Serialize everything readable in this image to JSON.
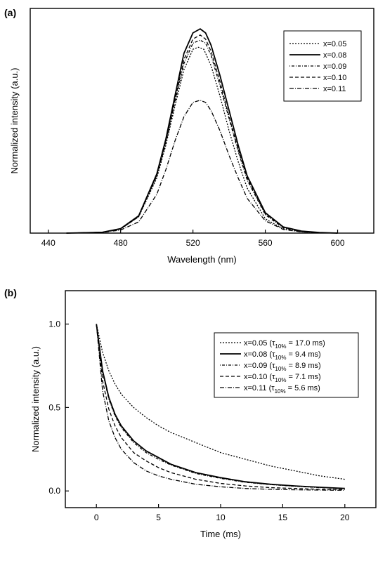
{
  "chart_data": [
    {
      "panel_label": "(a)",
      "type": "line",
      "xlabel": "Wavelength (nm)",
      "ylabel": "Normalized intensity (a.u.)",
      "xlim": [
        430,
        620
      ],
      "ylim": [
        0,
        1.1
      ],
      "xticks": [
        440,
        480,
        520,
        560,
        600
      ],
      "yticks": [],
      "legend_position": "top-right",
      "grid": false,
      "series": [
        {
          "name": "x=0.05",
          "dash": "2,2",
          "x": [
            450,
            470,
            480,
            490,
            500,
            505,
            510,
            515,
            520,
            523,
            526,
            530,
            535,
            540,
            545,
            550,
            560,
            570,
            580,
            590,
            600
          ],
          "y": [
            0,
            0.004,
            0.02,
            0.08,
            0.27,
            0.43,
            0.62,
            0.8,
            0.9,
            0.91,
            0.9,
            0.82,
            0.67,
            0.5,
            0.35,
            0.22,
            0.07,
            0.02,
            0.007,
            0.002,
            0
          ]
        },
        {
          "name": "x=0.08",
          "dash": "",
          "x": [
            450,
            470,
            480,
            490,
            500,
            505,
            510,
            515,
            520,
            524,
            527,
            530,
            535,
            540,
            545,
            550,
            560,
            570,
            580,
            590,
            600
          ],
          "y": [
            0,
            0.004,
            0.022,
            0.085,
            0.29,
            0.46,
            0.67,
            0.88,
            0.98,
            1.0,
            0.98,
            0.92,
            0.77,
            0.6,
            0.43,
            0.28,
            0.1,
            0.03,
            0.01,
            0.003,
            0
          ]
        },
        {
          "name": "x=0.09",
          "dash": "1,2,4,2",
          "x": [
            450,
            470,
            480,
            490,
            500,
            505,
            510,
            515,
            520,
            524,
            527,
            530,
            535,
            540,
            545,
            550,
            560,
            570,
            580,
            590,
            600
          ],
          "y": [
            0,
            0.004,
            0.02,
            0.08,
            0.28,
            0.44,
            0.64,
            0.83,
            0.93,
            0.945,
            0.93,
            0.87,
            0.72,
            0.56,
            0.4,
            0.26,
            0.09,
            0.025,
            0.008,
            0.002,
            0
          ]
        },
        {
          "name": "x=0.10",
          "dash": "5,3",
          "x": [
            450,
            470,
            480,
            490,
            500,
            505,
            510,
            515,
            520,
            524,
            527,
            530,
            535,
            540,
            545,
            550,
            560,
            570,
            580,
            590,
            600
          ],
          "y": [
            0,
            0.004,
            0.021,
            0.083,
            0.285,
            0.45,
            0.65,
            0.85,
            0.95,
            0.97,
            0.95,
            0.89,
            0.74,
            0.57,
            0.41,
            0.27,
            0.095,
            0.028,
            0.009,
            0.002,
            0
          ]
        },
        {
          "name": "x=0.11",
          "dash": "6,2,1,2",
          "x": [
            450,
            470,
            480,
            490,
            500,
            505,
            510,
            515,
            520,
            524,
            527,
            530,
            535,
            540,
            545,
            550,
            560,
            570,
            580,
            590,
            600
          ],
          "y": [
            0,
            0.003,
            0.015,
            0.055,
            0.19,
            0.31,
            0.45,
            0.57,
            0.64,
            0.65,
            0.64,
            0.6,
            0.5,
            0.38,
            0.27,
            0.17,
            0.06,
            0.018,
            0.006,
            0.002,
            0
          ]
        }
      ]
    },
    {
      "panel_label": "(b)",
      "type": "line",
      "xlabel": "Time (ms)",
      "ylabel": "Normalized intensity (a.u.)",
      "xlim": [
        -2.5,
        22.5
      ],
      "ylim": [
        -0.1,
        1.2
      ],
      "xticks": [
        0,
        5,
        10,
        15,
        20
      ],
      "yticks": [
        0.0,
        0.5,
        1.0
      ],
      "ytick_labels": [
        "0.0",
        "0.5",
        "1.0"
      ],
      "legend_position": "top-right",
      "grid": false,
      "series": [
        {
          "name": "x=0.05",
          "tau": "= 17.0 ms",
          "dash": "2,2",
          "x": [
            0,
            0.5,
            1,
            1.5,
            2,
            3,
            4,
            5,
            6,
            8,
            10,
            12,
            14,
            16,
            18,
            20
          ],
          "y": [
            1.0,
            0.83,
            0.72,
            0.64,
            0.58,
            0.5,
            0.44,
            0.39,
            0.35,
            0.29,
            0.23,
            0.19,
            0.15,
            0.12,
            0.09,
            0.07
          ]
        },
        {
          "name": "x=0.08",
          "tau": "= 9.4 ms",
          "dash": "",
          "x": [
            0,
            0.5,
            1,
            1.5,
            2,
            3,
            4,
            5,
            6,
            8,
            10,
            12,
            14,
            16,
            18,
            20
          ],
          "y": [
            1.0,
            0.72,
            0.56,
            0.46,
            0.39,
            0.3,
            0.24,
            0.2,
            0.16,
            0.11,
            0.08,
            0.055,
            0.04,
            0.03,
            0.022,
            0.015
          ]
        },
        {
          "name": "x=0.09",
          "tau": "= 8.9 ms",
          "dash": "1,2,4,2",
          "x": [
            0,
            0.5,
            1,
            1.5,
            2,
            3,
            4,
            5,
            6,
            8,
            10,
            12,
            14,
            16,
            18,
            20
          ],
          "y": [
            1.0,
            0.71,
            0.55,
            0.45,
            0.38,
            0.29,
            0.23,
            0.19,
            0.155,
            0.105,
            0.075,
            0.052,
            0.038,
            0.028,
            0.02,
            0.014
          ]
        },
        {
          "name": "x=0.10",
          "tau": "= 7.1 ms",
          "dash": "5,3",
          "x": [
            0,
            0.5,
            1,
            1.5,
            2,
            3,
            4,
            5,
            6,
            8,
            10,
            12,
            14,
            16,
            18,
            20
          ],
          "y": [
            1.0,
            0.66,
            0.49,
            0.39,
            0.32,
            0.23,
            0.18,
            0.14,
            0.11,
            0.07,
            0.045,
            0.03,
            0.02,
            0.015,
            0.01,
            0.008
          ]
        },
        {
          "name": "x=0.11",
          "tau": "= 5.6 ms",
          "dash": "6,2,1,2",
          "x": [
            0,
            0.5,
            1,
            1.5,
            2,
            3,
            4,
            5,
            6,
            8,
            10,
            12,
            14,
            16,
            18,
            20
          ],
          "y": [
            1.0,
            0.6,
            0.42,
            0.32,
            0.25,
            0.17,
            0.12,
            0.09,
            0.07,
            0.04,
            0.025,
            0.015,
            0.01,
            0.007,
            0.005,
            0.004
          ]
        }
      ]
    }
  ],
  "legend_b_symbol": "τ",
  "legend_b_subscript": "10%"
}
